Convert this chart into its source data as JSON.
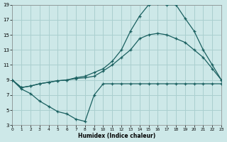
{
  "xlabel": "Humidex (Indice chaleur)",
  "bg_color": "#cde8e8",
  "grid_color": "#aacfcf",
  "line_color": "#1a6060",
  "xlim": [
    0,
    23
  ],
  "ylim": [
    3,
    19
  ],
  "xticks": [
    0,
    1,
    2,
    3,
    4,
    5,
    6,
    7,
    8,
    9,
    10,
    11,
    12,
    13,
    14,
    15,
    16,
    17,
    18,
    19,
    20,
    21,
    22,
    23
  ],
  "yticks": [
    3,
    5,
    7,
    9,
    11,
    13,
    15,
    17,
    19
  ],
  "curve1_x": [
    0,
    1,
    2,
    3,
    4,
    5,
    6,
    7,
    8,
    9,
    10,
    11,
    12,
    13,
    14,
    15,
    16,
    17,
    18,
    19,
    20,
    21,
    22,
    23
  ],
  "curve1_y": [
    9,
    8.0,
    8.2,
    8.5,
    8.7,
    8.9,
    9.0,
    9.2,
    9.3,
    9.5,
    10.2,
    11.0,
    12.0,
    13.0,
    14.5,
    15.0,
    15.2,
    15.0,
    14.5,
    14.0,
    13.0,
    12.0,
    10.5,
    9.0
  ],
  "curve2_x": [
    0,
    1,
    2,
    3,
    4,
    5,
    6,
    7,
    8,
    9,
    10,
    11,
    12,
    13,
    14,
    15,
    16,
    17,
    18,
    19,
    20,
    21,
    22,
    23
  ],
  "curve2_y": [
    9,
    8.0,
    8.2,
    8.5,
    8.7,
    8.9,
    9.0,
    9.3,
    9.5,
    10.0,
    10.5,
    11.5,
    13.0,
    15.5,
    17.5,
    19.0,
    19.2,
    19.0,
    19.0,
    17.2,
    15.5,
    13.0,
    11.0,
    9.0
  ],
  "curve3_x": [
    0,
    1,
    2,
    3,
    4,
    5,
    6,
    7,
    8,
    9,
    10,
    11,
    12,
    13,
    14,
    15,
    16,
    17,
    18,
    19,
    20,
    21,
    22,
    23
  ],
  "curve3_y": [
    9,
    7.8,
    7.2,
    6.2,
    5.5,
    4.8,
    4.5,
    3.8,
    3.5,
    7.0,
    8.5,
    8.5,
    8.5,
    8.5,
    8.5,
    8.5,
    8.5,
    8.5,
    8.5,
    8.5,
    8.5,
    8.5,
    8.5,
    8.5
  ]
}
